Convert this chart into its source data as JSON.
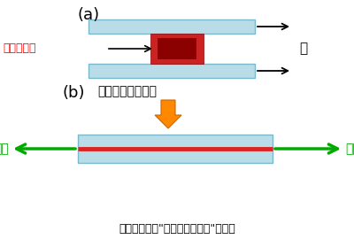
{
  "figsize": [
    4.0,
    2.79
  ],
  "dpi": 100,
  "bg_color": "#ffffff",
  "label_a": "(a)",
  "label_b": "(b)",
  "text_tsubu": "つぶして伸長した",
  "text_ita": "板",
  "text_kakureitu": "過冷却液体",
  "text_shincho_left": "伸長",
  "text_shincho_right": "伸長",
  "text_bottom": "つぶす速度を\"伸長ひずみ速度\"という",
  "plate_color": "#b8dde8",
  "plate_edge_color": "#7ab8cc",
  "red_block_color_dark": "#8b0000",
  "red_block_color_light": "#cc2222",
  "red_line_color": "#dd2222",
  "arrow_color_orange": "#ff8800",
  "arrow_color_orange_edge": "#cc6600",
  "arrow_color_green": "#00aa00",
  "arrow_color_black": "#000000"
}
